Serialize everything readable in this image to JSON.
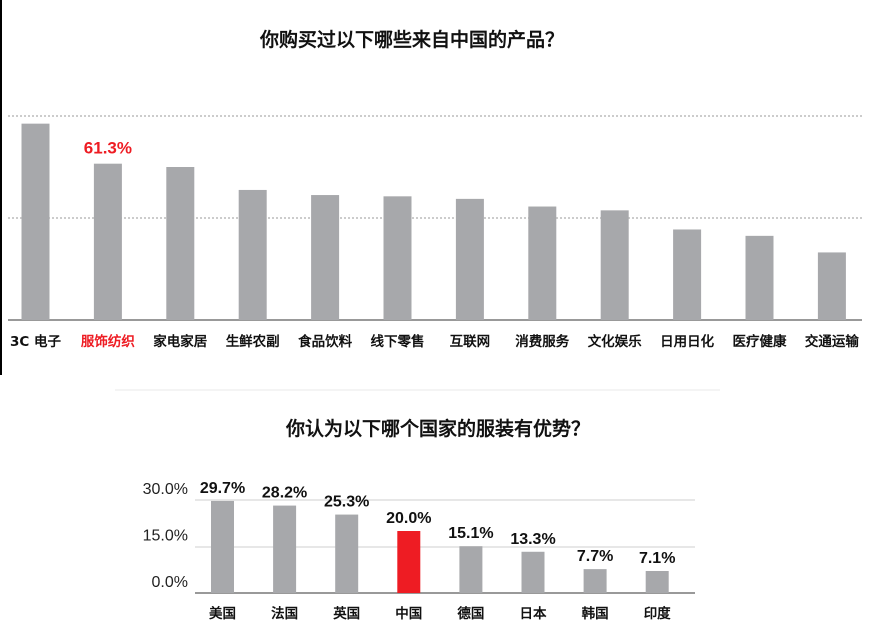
{
  "colors": {
    "bar": "#a7a8ab",
    "highlight": "#ee1c23",
    "grid": "#9a9a9a"
  },
  "chart_data": [
    {
      "type": "bar",
      "title": "你购买过以下哪些来自中国的产品？",
      "categories": [
        "3C 电子",
        "服饰纺织",
        "家电家居",
        "生鲜农副",
        "食品饮料",
        "线下零售",
        "互联网",
        "消费服务",
        "文化娱乐",
        "日用日化",
        "医疗健康",
        "交通运输"
      ],
      "values": [
        77.0,
        61.3,
        60.0,
        51.0,
        49.0,
        48.5,
        47.5,
        44.5,
        43.0,
        35.5,
        33.0,
        26.5
      ],
      "highlight_index": 1,
      "data_labels": [
        {
          "index": 1,
          "text": "61.3%"
        }
      ],
      "ylim": [
        0,
        80
      ],
      "grid": true
    },
    {
      "type": "bar",
      "title": "你认为以下哪个国家的服装有优势？",
      "categories": [
        "美国",
        "法国",
        "英国",
        "中国",
        "德国",
        "日本",
        "韩国",
        "印度"
      ],
      "values": [
        29.7,
        28.2,
        25.3,
        20.0,
        15.1,
        13.3,
        7.7,
        7.1
      ],
      "labels": [
        "29.7%",
        "28.2%",
        "25.3%",
        "20.0%",
        "15.1%",
        "13.3%",
        "7.7%",
        "7.1%"
      ],
      "highlight_index": 3,
      "yticks": [
        "0.0%",
        "15.0%",
        "30.0%"
      ],
      "ytick_values": [
        0,
        15,
        30
      ],
      "ylim": [
        0,
        30
      ],
      "grid": true
    }
  ]
}
